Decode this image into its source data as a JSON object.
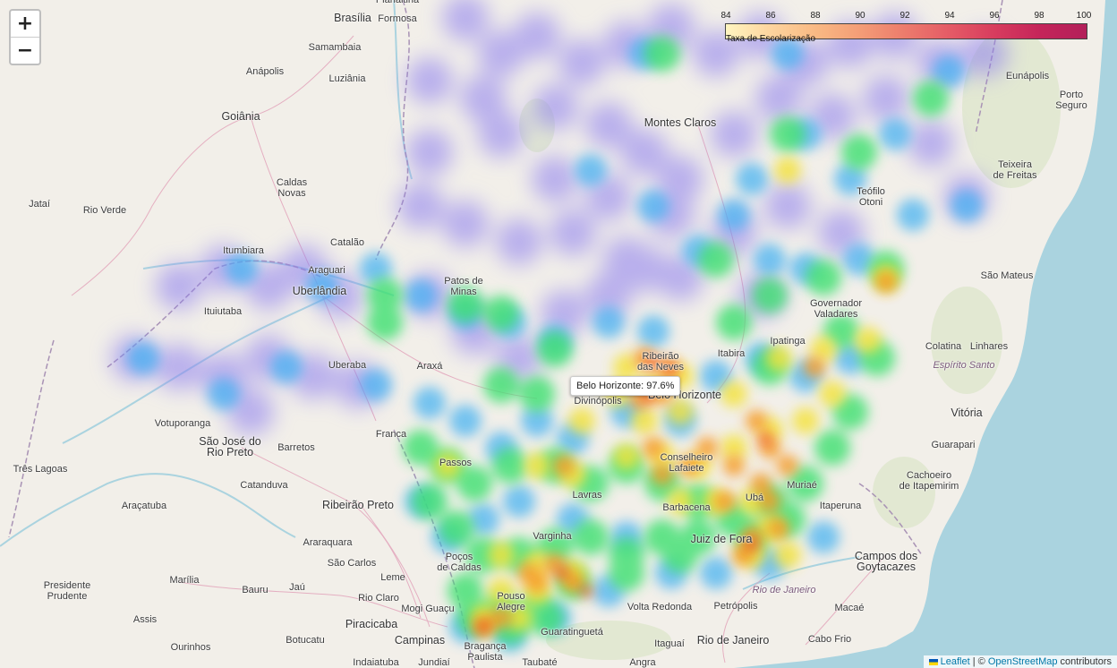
{
  "zoom": {
    "in_label": "+",
    "out_label": "−"
  },
  "legend": {
    "caption": "Taxa de Escolarização",
    "ticks": [
      "84",
      "86",
      "88",
      "90",
      "92",
      "94",
      "96",
      "98",
      "100"
    ],
    "range": [
      84,
      100
    ],
    "gradient": [
      "#fff5c0",
      "#fdd49e",
      "#f9b983",
      "#f39c76",
      "#ec7a6c",
      "#e45a66",
      "#d73b5e",
      "#c4245a",
      "#b3205a"
    ]
  },
  "tooltip": {
    "text": "Belo Horizonte: 97.6%"
  },
  "attribution": {
    "leaflet": "Leaflet",
    "separator": " | © ",
    "osm": "OpenStreetMap",
    "suffix": " contributors"
  },
  "places": [
    {
      "name": "Brasília",
      "big": true
    },
    {
      "name": "Formosa"
    },
    {
      "name": "Planaltina"
    },
    {
      "name": "Samambaia"
    },
    {
      "name": "Luziânia"
    },
    {
      "name": "Anápolis"
    },
    {
      "name": "Goiânia",
      "big": true
    },
    {
      "name": "Caldas\nNovas"
    },
    {
      "name": "Jataí"
    },
    {
      "name": "Rio Verde"
    },
    {
      "name": "Catalão"
    },
    {
      "name": "Itumbiara"
    },
    {
      "name": "Araguari"
    },
    {
      "name": "Uberlândia",
      "big": true
    },
    {
      "name": "Ituiutaba"
    },
    {
      "name": "Uberaba"
    },
    {
      "name": "Araxá"
    },
    {
      "name": "Patos de\nMinas"
    },
    {
      "name": "Montes Claros",
      "big": true
    },
    {
      "name": "Eunápolis"
    },
    {
      "name": "Porto Seguro"
    },
    {
      "name": "Teixeira\nde Freitas"
    },
    {
      "name": "Teófilo\nOtoni"
    },
    {
      "name": "São Mateus"
    },
    {
      "name": "Governador\nValadares"
    },
    {
      "name": "Ipatinga"
    },
    {
      "name": "Itabira"
    },
    {
      "name": "Ribeirão\ndas Neves"
    },
    {
      "name": "Belo Horizonte",
      "big": true
    },
    {
      "name": "Divinópolis"
    },
    {
      "name": "Colatina"
    },
    {
      "name": "Linhares"
    },
    {
      "name": "Espírito Santo",
      "state": true
    },
    {
      "name": "Vitória",
      "big": true
    },
    {
      "name": "Guarapari"
    },
    {
      "name": "Cachoeiro\nde Itapemirim"
    },
    {
      "name": "Itaperuna"
    },
    {
      "name": "Campos dos\nGoytacazes",
      "big": true
    },
    {
      "name": "Macaé"
    },
    {
      "name": "Cabo Frio"
    },
    {
      "name": "Rio de Janeiro",
      "big": true
    },
    {
      "name": "Rio de Janeiro",
      "state": true
    },
    {
      "name": "Itaguaí"
    },
    {
      "name": "Petrópolis"
    },
    {
      "name": "Volta Redonda"
    },
    {
      "name": "Juiz de Fora",
      "big": true
    },
    {
      "name": "Muriaé"
    },
    {
      "name": "Ubá"
    },
    {
      "name": "Barbacena"
    },
    {
      "name": "Conselheiro\nLafaiete"
    },
    {
      "name": "Lavras"
    },
    {
      "name": "Varginha"
    },
    {
      "name": "Poços\nde Caldas"
    },
    {
      "name": "Pouso\nAlegre"
    },
    {
      "name": "Passos"
    },
    {
      "name": "Franca"
    },
    {
      "name": "Ribeirão Preto",
      "big": true
    },
    {
      "name": "São José do\nRio Preto",
      "big": true
    },
    {
      "name": "Barretos"
    },
    {
      "name": "Votuporanga"
    },
    {
      "name": "Três Lagoas"
    },
    {
      "name": "Catanduva"
    },
    {
      "name": "Araçatuba"
    },
    {
      "name": "Araraquara"
    },
    {
      "name": "São Carlos"
    },
    {
      "name": "Presidente\nPrudente"
    },
    {
      "name": "Marília"
    },
    {
      "name": "Bauru"
    },
    {
      "name": "Jaú"
    },
    {
      "name": "Leme"
    },
    {
      "name": "Rio Claro"
    },
    {
      "name": "Mogi Guaçu"
    },
    {
      "name": "Piracicaba",
      "big": true
    },
    {
      "name": "Campinas",
      "big": true
    },
    {
      "name": "Assis"
    },
    {
      "name": "Botucatu"
    },
    {
      "name": "Ourinhos"
    },
    {
      "name": "Bragança\nPaulista"
    },
    {
      "name": "Guaratinguetá"
    },
    {
      "name": "Jundiaí"
    },
    {
      "name": "Indaiatuba"
    },
    {
      "name": "Taubaté"
    },
    {
      "name": "Angra"
    }
  ]
}
